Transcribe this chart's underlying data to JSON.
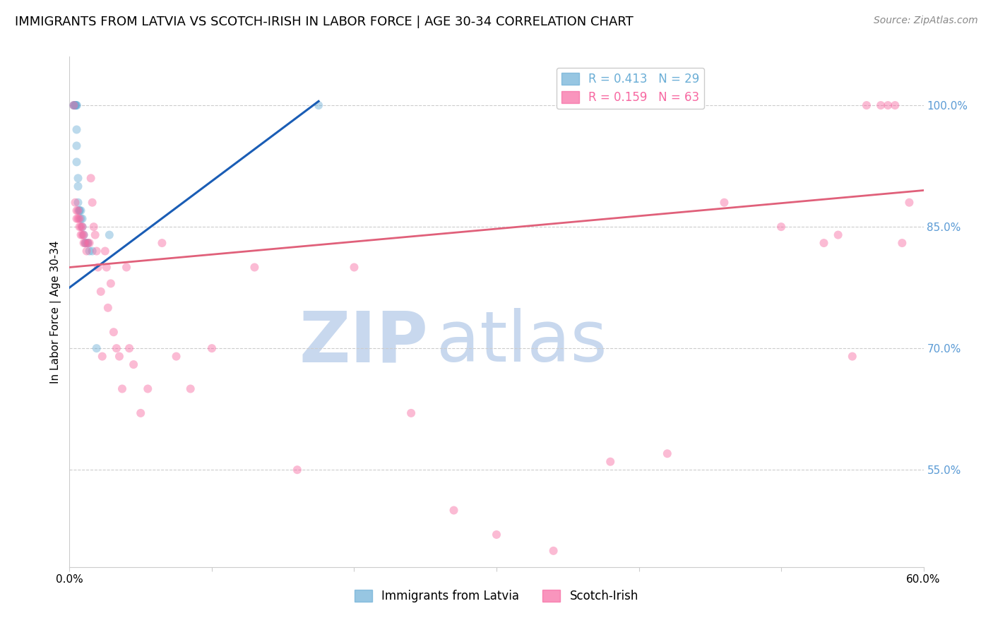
{
  "title": "IMMIGRANTS FROM LATVIA VS SCOTCH-IRISH IN LABOR FORCE | AGE 30-34 CORRELATION CHART",
  "source": "Source: ZipAtlas.com",
  "ylabel": "In Labor Force | Age 30-34",
  "ylabel_ticks": [
    0.55,
    0.7,
    0.85,
    1.0
  ],
  "ylabel_tick_labels": [
    "55.0%",
    "70.0%",
    "85.0%",
    "100.0%"
  ],
  "legend_entries": [
    {
      "label_r": "R = 0.413",
      "label_n": "N = 29",
      "color": "#6baed6"
    },
    {
      "label_r": "R = 0.159",
      "label_n": "N = 63",
      "color": "#f768a1"
    }
  ],
  "blue_scatter_x": [
    0.003,
    0.003,
    0.004,
    0.004,
    0.004,
    0.004,
    0.005,
    0.005,
    0.005,
    0.005,
    0.005,
    0.006,
    0.006,
    0.006,
    0.007,
    0.007,
    0.008,
    0.008,
    0.009,
    0.009,
    0.01,
    0.011,
    0.012,
    0.013,
    0.014,
    0.016,
    0.019,
    0.028,
    0.175
  ],
  "blue_scatter_y": [
    1.0,
    1.0,
    1.0,
    1.0,
    1.0,
    1.0,
    1.0,
    1.0,
    0.97,
    0.95,
    0.93,
    0.91,
    0.9,
    0.88,
    0.87,
    0.87,
    0.87,
    0.86,
    0.86,
    0.85,
    0.84,
    0.83,
    0.83,
    0.83,
    0.82,
    0.82,
    0.7,
    0.84,
    1.0
  ],
  "pink_scatter_x": [
    0.003,
    0.004,
    0.005,
    0.005,
    0.006,
    0.006,
    0.007,
    0.007,
    0.008,
    0.008,
    0.009,
    0.009,
    0.01,
    0.01,
    0.011,
    0.012,
    0.013,
    0.014,
    0.015,
    0.016,
    0.017,
    0.018,
    0.019,
    0.02,
    0.022,
    0.023,
    0.025,
    0.026,
    0.027,
    0.029,
    0.031,
    0.033,
    0.035,
    0.037,
    0.04,
    0.042,
    0.045,
    0.05,
    0.055,
    0.065,
    0.075,
    0.085,
    0.1,
    0.13,
    0.16,
    0.2,
    0.24,
    0.27,
    0.3,
    0.34,
    0.38,
    0.42,
    0.46,
    0.5,
    0.53,
    0.54,
    0.55,
    0.56,
    0.57,
    0.575,
    0.58,
    0.585,
    0.59
  ],
  "pink_scatter_y": [
    1.0,
    0.88,
    0.87,
    0.86,
    0.87,
    0.86,
    0.86,
    0.85,
    0.85,
    0.84,
    0.85,
    0.84,
    0.84,
    0.83,
    0.83,
    0.82,
    0.83,
    0.83,
    0.91,
    0.88,
    0.85,
    0.84,
    0.82,
    0.8,
    0.77,
    0.69,
    0.82,
    0.8,
    0.75,
    0.78,
    0.72,
    0.7,
    0.69,
    0.65,
    0.8,
    0.7,
    0.68,
    0.62,
    0.65,
    0.83,
    0.69,
    0.65,
    0.7,
    0.8,
    0.55,
    0.8,
    0.62,
    0.5,
    0.47,
    0.45,
    0.56,
    0.57,
    0.88,
    0.85,
    0.83,
    0.84,
    0.69,
    1.0,
    1.0,
    1.0,
    1.0,
    0.83,
    0.88
  ],
  "blue_line_x": [
    0.0,
    0.175
  ],
  "blue_line_y": [
    0.775,
    1.005
  ],
  "pink_line_x": [
    0.0,
    0.6
  ],
  "pink_line_y": [
    0.8,
    0.895
  ],
  "xlim": [
    0.0,
    0.6
  ],
  "ylim": [
    0.43,
    1.06
  ],
  "blue_color": "#6baed6",
  "pink_color": "#f768a1",
  "blue_line_color": "#1a5db5",
  "pink_line_color": "#e0607a",
  "scatter_size": 75,
  "scatter_alpha": 0.45,
  "title_fontsize": 13,
  "axis_label_fontsize": 11,
  "tick_fontsize": 11,
  "legend_fontsize": 12,
  "source_fontsize": 10,
  "grid_color": "#cccccc",
  "background_color": "#ffffff",
  "right_tick_color": "#5b9bd5",
  "watermark_zip_text": "ZIP",
  "watermark_atlas_text": "atlas",
  "watermark_zip_color": "#c8d8ee",
  "watermark_atlas_color": "#c8d8ee",
  "watermark_fontsize": 72
}
